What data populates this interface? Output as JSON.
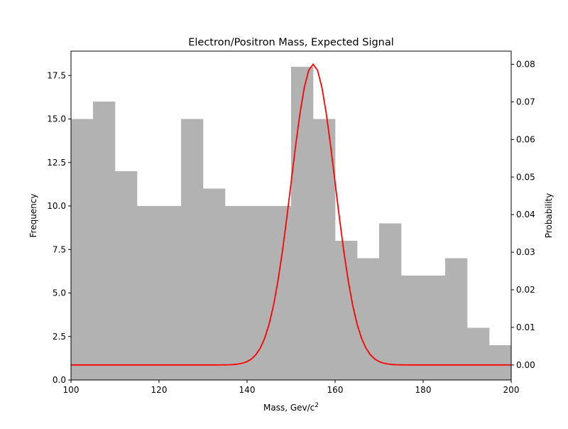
{
  "chart_data": {
    "type": "bar",
    "title": "Electron/Positron Mass, Expected Signal",
    "xlabel": "Mass, Gev/c",
    "xlabel_superscript": "2",
    "ylabel": "Frequency",
    "y2label": "Probability",
    "xlim": [
      100,
      200
    ],
    "ylim": [
      0,
      18.9
    ],
    "y2lim": [
      -0.004,
      0.0835
    ],
    "x_ticks": [
      100,
      120,
      140,
      160,
      180,
      200
    ],
    "x_tick_labels": [
      "100",
      "120",
      "140",
      "160",
      "180",
      "200"
    ],
    "y_ticks": [
      0,
      2.5,
      5,
      7.5,
      10,
      12.5,
      15,
      17.5
    ],
    "y_tick_labels": [
      "0.0",
      "2.5",
      "5.0",
      "7.5",
      "10.0",
      "12.5",
      "15.0",
      "17.5"
    ],
    "y2_ticks": [
      0,
      0.01,
      0.02,
      0.03,
      0.04,
      0.05,
      0.06,
      0.07,
      0.08
    ],
    "y2_tick_labels": [
      "0.00",
      "0.01",
      "0.02",
      "0.03",
      "0.04",
      "0.05",
      "0.06",
      "0.07",
      "0.08"
    ],
    "grid": false,
    "histogram": {
      "color": "#b2b2b2",
      "bin_edges": [
        100,
        105,
        110,
        115,
        120,
        125,
        130,
        135,
        140,
        145,
        150,
        155,
        160,
        165,
        170,
        175,
        180,
        185,
        190,
        195,
        200
      ],
      "values": [
        15,
        16,
        12,
        10,
        10,
        15,
        11,
        10,
        10,
        10,
        18,
        15,
        8,
        7,
        9,
        6,
        6,
        7,
        3,
        2
      ]
    },
    "curve": {
      "type": "line",
      "color": "#ff0000",
      "mu": 155,
      "sigma": 5,
      "peak": 0.08,
      "x_range": [
        100,
        200
      ]
    }
  }
}
